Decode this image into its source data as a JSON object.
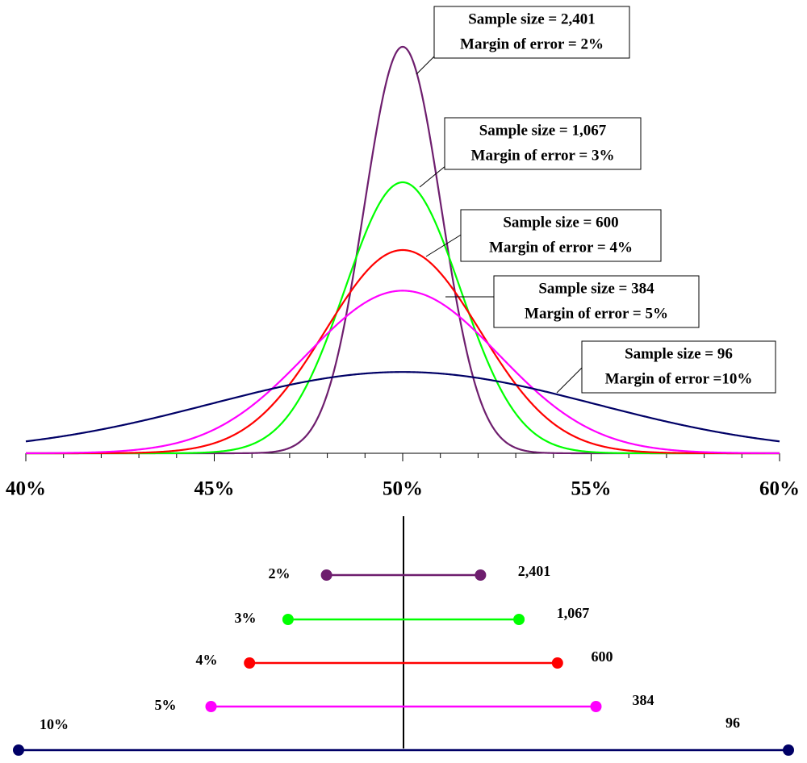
{
  "chart_data": {
    "type": "normal",
    "xlim": [
      40,
      60
    ],
    "xticks": [
      {
        "value": 40,
        "label": "40%"
      },
      {
        "value": 45,
        "label": "45%"
      },
      {
        "value": 50,
        "label": "50%"
      },
      {
        "value": 55,
        "label": "55%"
      },
      {
        "value": 60,
        "label": "60%"
      }
    ],
    "minor_xticks": [
      41,
      42,
      43,
      44,
      46,
      47,
      48,
      49,
      51,
      52,
      53,
      54,
      56,
      57,
      58,
      59
    ],
    "center": 50,
    "series": [
      {
        "color": "#6e1e6e",
        "margin": 2,
        "margin_label": "2%",
        "sample_size_label": "2,401",
        "annotation": [
          "Sample size = 2,401",
          "Margin of error = 2%"
        ]
      },
      {
        "color": "#00ff00",
        "margin": 3,
        "margin_label": "3%",
        "sample_size_label": "1,067",
        "annotation": [
          "Sample size = 1,067",
          "Margin of error = 3%"
        ]
      },
      {
        "color": "#ff0000",
        "margin": 4,
        "margin_label": "4%",
        "sample_size_label": "600",
        "annotation": [
          "Sample size = 600",
          "Margin of error = 4%"
        ]
      },
      {
        "color": "#ff00ff",
        "margin": 5,
        "margin_label": "5%",
        "sample_size_label": "384",
        "annotation": [
          "Sample size = 384",
          "Margin of error = 5%"
        ]
      },
      {
        "color": "#000066",
        "margin": 10,
        "margin_label": "10%",
        "sample_size_label": "96",
        "annotation": [
          "Sample size = 96",
          "Margin of error =10%"
        ]
      }
    ]
  }
}
